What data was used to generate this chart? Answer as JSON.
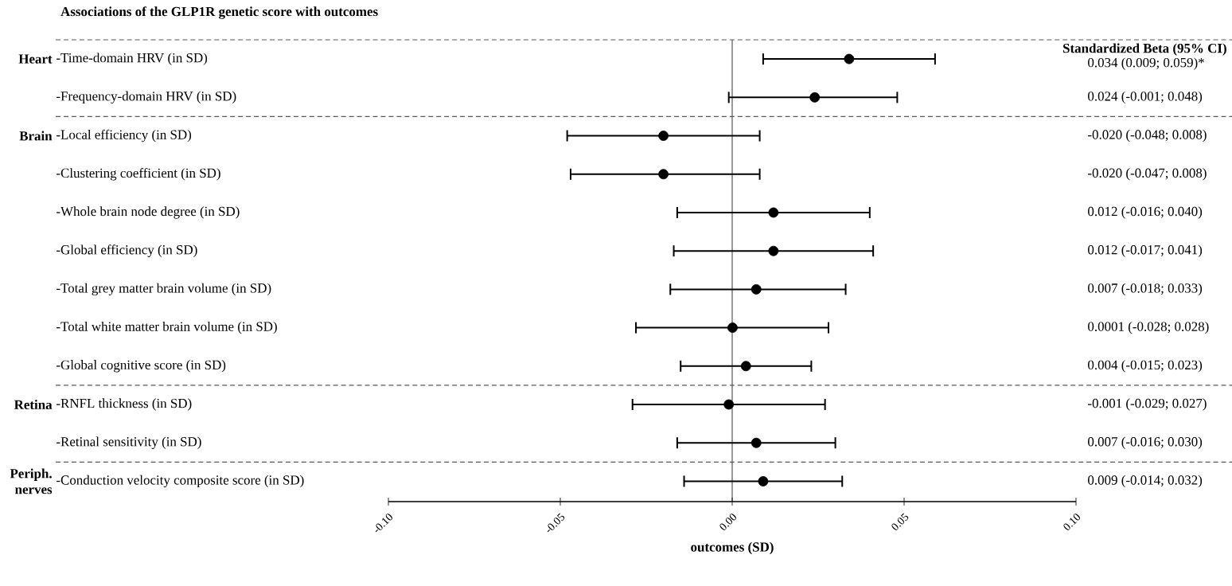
{
  "chart_data": {
    "type": "scatter",
    "orientation": "horizontal",
    "title": "Associations of the GLP1R genetic score with outcomes",
    "xlabel": "outcomes (SD)",
    "categories": [
      "-Time-domain HRV (in SD)",
      "-Frequency-domain HRV (in SD)",
      "-Local efficiency (in SD)",
      "-Clustering coefficient (in SD)",
      "-Whole brain node degree (in SD)",
      "-Global efficiency (in SD)",
      "-Total grey matter brain volume (in SD)",
      "-Total white matter brain volume (in SD)",
      "-Global cognitive score (in SD)",
      "-RNFL thickness (in SD)",
      "-Retinal sensitivity (in SD)",
      "-Conduction velocity composite score (in SD)"
    ],
    "values": [
      0.034,
      0.024,
      -0.02,
      -0.02,
      0.012,
      0.012,
      0.007,
      0.0001,
      0.004,
      -0.001,
      0.007,
      0.009
    ],
    "errors": [
      [
        0.009,
        0.059
      ],
      [
        -0.001,
        0.048
      ],
      [
        -0.048,
        0.008
      ],
      [
        -0.047,
        0.008
      ],
      [
        -0.016,
        0.04
      ],
      [
        -0.017,
        0.041
      ],
      [
        -0.018,
        0.033
      ],
      [
        -0.028,
        0.028
      ],
      [
        -0.015,
        0.023
      ],
      [
        -0.029,
        0.027
      ],
      [
        -0.016,
        0.03
      ],
      [
        -0.014,
        0.032
      ]
    ],
    "value_labels": [
      "0.034 (0.009; 0.059)*",
      "0.024 (-0.001; 0.048)",
      "-0.020 (-0.048; 0.008)",
      "-0.020 (-0.047; 0.008)",
      "0.012 (-0.016; 0.040)",
      "0.012 (-0.017; 0.041)",
      "0.007 (-0.018; 0.033)",
      "0.0001 (-0.028; 0.028)",
      "0.004 (-0.015; 0.023)",
      "-0.001 (-0.029; 0.027)",
      "0.007 (-0.016; 0.030)",
      "0.009 (-0.014; 0.032)"
    ],
    "color": "#000000",
    "marker": "circle",
    "xlim": [
      -0.1,
      0.1
    ],
    "xticks": [
      {
        "value": -0.1,
        "label": "-0.10"
      },
      {
        "value": -0.05,
        "label": "-0.05"
      },
      {
        "value": 0,
        "label": "0.00"
      },
      {
        "value": 0.05,
        "label": "0.05"
      },
      {
        "value": 0.1,
        "label": "0.10"
      }
    ],
    "ref_lines": [
      {
        "axis": "x",
        "value": 0
      }
    ],
    "annotations": [
      "Standardized  Beta (95% CI)",
      "Heart",
      "Brain",
      "Retina",
      "Periph. nerves"
    ],
    "grid": false
  }
}
